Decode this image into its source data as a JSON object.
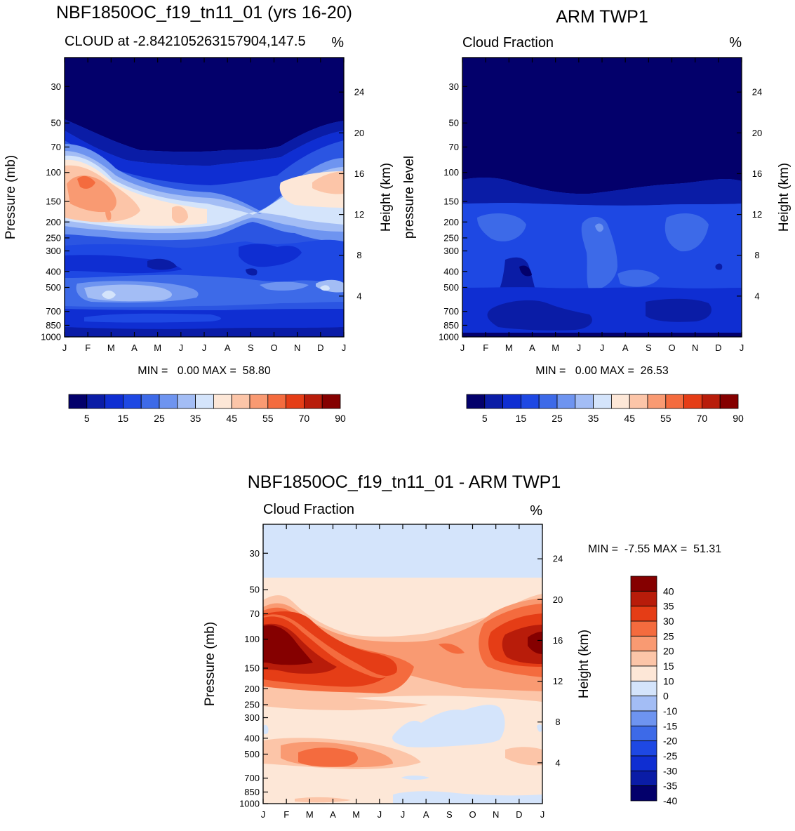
{
  "chart_data": [
    {
      "type": "contour",
      "title": "NBF1850OC_f19_tn11_01 (yrs 16-20)",
      "subtitle_left": "CLOUD at -2.842105263157904,147.5",
      "subtitle_right": "%",
      "ylabel": "Pressure (mb)",
      "ylabel_right": "Height (km)",
      "x_ticks": [
        "J",
        "F",
        "M",
        "A",
        "M",
        "J",
        "J",
        "A",
        "S",
        "O",
        "N",
        "D",
        "J"
      ],
      "pressure_ticks": [
        30,
        50,
        70,
        100,
        150,
        200,
        250,
        300,
        400,
        500,
        700,
        850,
        1000
      ],
      "height_ticks": [
        24,
        20,
        16,
        12,
        8,
        4
      ],
      "min_max_text": "MIN =   0.00 MAX =  58.80",
      "min": 0.0,
      "max": 58.8,
      "legend_labels": [
        "5",
        "15",
        "25",
        "35",
        "45",
        "55",
        "70",
        "90"
      ],
      "colors": [
        "#03006b",
        "#0a1ca6",
        "#0f2ed2",
        "#1e48e3",
        "#3d6ae8",
        "#6e94f0",
        "#a3bdf5",
        "#d4e4fb",
        "#fde7d7",
        "#fcc5a8",
        "#f99a72",
        "#f46b3e",
        "#e53d16",
        "#b81c0a",
        "#850000"
      ]
    },
    {
      "type": "contour",
      "title": "ARM TWP1",
      "subtitle_left": "Cloud Fraction",
      "subtitle_right": "%",
      "ylabel": "pressure level",
      "ylabel_right": "Height (km)",
      "x_ticks": [
        "J",
        "F",
        "M",
        "A",
        "M",
        "J",
        "J",
        "A",
        "S",
        "O",
        "N",
        "D",
        "J"
      ],
      "pressure_ticks": [
        30,
        50,
        70,
        100,
        150,
        200,
        250,
        300,
        400,
        500,
        700,
        850,
        1000
      ],
      "height_ticks": [
        24,
        20,
        16,
        12,
        8,
        4
      ],
      "min_max_text": "MIN =   0.00 MAX =  26.53",
      "min": 0.0,
      "max": 26.53,
      "legend_labels": [
        "5",
        "15",
        "25",
        "35",
        "45",
        "55",
        "70",
        "90"
      ],
      "colors": [
        "#03006b",
        "#0a1ca6",
        "#0f2ed2",
        "#1e48e3",
        "#3d6ae8",
        "#6e94f0",
        "#a3bdf5",
        "#d4e4fb",
        "#fde7d7",
        "#fcc5a8",
        "#f99a72",
        "#f46b3e",
        "#e53d16",
        "#b81c0a",
        "#850000"
      ]
    },
    {
      "type": "contour",
      "title": "NBF1850OC_f19_tn11_01 - ARM TWP1",
      "subtitle_left": "Cloud Fraction",
      "subtitle_right": "%",
      "ylabel": "Pressure (mb)",
      "ylabel_right": "Height (km)",
      "x_ticks": [
        "J",
        "F",
        "M",
        "A",
        "M",
        "J",
        "J",
        "A",
        "S",
        "O",
        "N",
        "D",
        "J"
      ],
      "pressure_ticks": [
        30,
        50,
        70,
        100,
        150,
        200,
        250,
        300,
        400,
        500,
        700,
        850,
        1000
      ],
      "height_ticks": [
        24,
        20,
        16,
        12,
        8,
        4
      ],
      "min_max_text": "MIN =  -7.55 MAX =  51.31",
      "min": -7.55,
      "max": 51.31,
      "legend_labels": [
        "40",
        "35",
        "30",
        "25",
        "20",
        "15",
        "10",
        "0",
        "-10",
        "-15",
        "-20",
        "-25",
        "-30",
        "-35",
        "-40"
      ],
      "colors": [
        "#850000",
        "#b81c0a",
        "#e53d16",
        "#f46b3e",
        "#f99a72",
        "#fcc5a8",
        "#fde7d7",
        "#d4e4fb",
        "#a3bdf5",
        "#6e94f0",
        "#3d6ae8",
        "#1e48e3",
        "#0f2ed2",
        "#0a1ca6",
        "#03006b"
      ]
    }
  ]
}
